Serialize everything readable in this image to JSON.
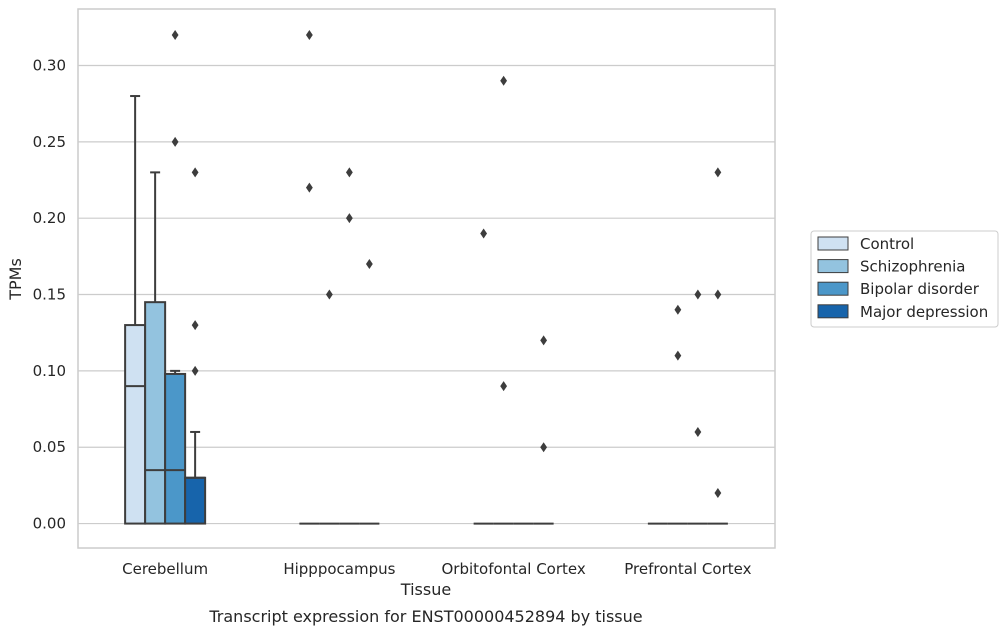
{
  "chart_data": {
    "type": "box",
    "caption": "Transcript expression for ENST00000452894 by tissue",
    "xlabel": "Tissue",
    "ylabel": "TPMs",
    "ylim": [
      -0.016,
      0.337
    ],
    "yticks": [
      "0.00",
      "0.05",
      "0.10",
      "0.15",
      "0.20",
      "0.25",
      "0.30"
    ],
    "ytick_values": [
      0,
      0.05,
      0.1,
      0.15,
      0.2,
      0.25,
      0.3
    ],
    "grid": true,
    "legend_position": "right",
    "categories": [
      "Cerebellum",
      "Hipppocampus",
      "Orbitofontal Cortex",
      "Prefrontal Cortex"
    ],
    "series": [
      {
        "name": "Control",
        "color": "#cfe1f2",
        "boxes": [
          {
            "whislo": 0,
            "q1": 0,
            "med": 0.09,
            "q3": 0.13,
            "whishi": 0.28,
            "fliers": []
          },
          {
            "whislo": 0,
            "q1": 0,
            "med": 0,
            "q3": 0,
            "whishi": 0,
            "fliers": [
              0.32,
              0.22
            ]
          },
          {
            "whislo": 0,
            "q1": 0,
            "med": 0,
            "q3": 0,
            "whishi": 0,
            "fliers": [
              0.19
            ]
          },
          {
            "whislo": 0,
            "q1": 0,
            "med": 0,
            "q3": 0,
            "whishi": 0,
            "fliers": []
          }
        ]
      },
      {
        "name": "Schizophrenia",
        "color": "#93c3df",
        "boxes": [
          {
            "whislo": 0,
            "q1": 0,
            "med": 0.035,
            "q3": 0.145,
            "whishi": 0.23,
            "fliers": []
          },
          {
            "whislo": 0,
            "q1": 0,
            "med": 0,
            "q3": 0,
            "whishi": 0,
            "fliers": [
              0.15
            ]
          },
          {
            "whislo": 0,
            "q1": 0,
            "med": 0,
            "q3": 0,
            "whishi": 0,
            "fliers": [
              0.29,
              0.09
            ]
          },
          {
            "whislo": 0,
            "q1": 0,
            "med": 0,
            "q3": 0,
            "whishi": 0,
            "fliers": [
              0.14,
              0.11
            ]
          }
        ]
      },
      {
        "name": "Bipolar disorder",
        "color": "#4b97c9",
        "boxes": [
          {
            "whislo": 0,
            "q1": 0,
            "med": 0.035,
            "q3": 0.098,
            "whishi": 0.1,
            "fliers": [
              0.32,
              0.25
            ]
          },
          {
            "whislo": 0,
            "q1": 0,
            "med": 0,
            "q3": 0,
            "whishi": 0,
            "fliers": [
              0.23,
              0.2
            ]
          },
          {
            "whislo": 0,
            "q1": 0,
            "med": 0,
            "q3": 0,
            "whishi": 0,
            "fliers": []
          },
          {
            "whislo": 0,
            "q1": 0,
            "med": 0,
            "q3": 0,
            "whishi": 0,
            "fliers": [
              0.15,
              0.06
            ]
          }
        ]
      },
      {
        "name": "Major depression",
        "color": "#1764ab",
        "boxes": [
          {
            "whislo": 0,
            "q1": 0,
            "med": 0.03,
            "q3": 0.03,
            "whishi": 0.06,
            "fliers": [
              0.23,
              0.13,
              0.1
            ]
          },
          {
            "whislo": 0,
            "q1": 0,
            "med": 0,
            "q3": 0,
            "whishi": 0,
            "fliers": [
              0.17
            ]
          },
          {
            "whislo": 0,
            "q1": 0,
            "med": 0,
            "q3": 0,
            "whishi": 0,
            "fliers": [
              0.12,
              0.05
            ]
          },
          {
            "whislo": 0,
            "q1": 0,
            "med": 0,
            "q3": 0,
            "whishi": 0,
            "fliers": [
              0.23,
              0.15,
              0.02
            ]
          }
        ]
      }
    ],
    "colors": {
      "grid": "#cccccc",
      "frame": "#cccccc",
      "line": "#3d3d3d"
    }
  }
}
